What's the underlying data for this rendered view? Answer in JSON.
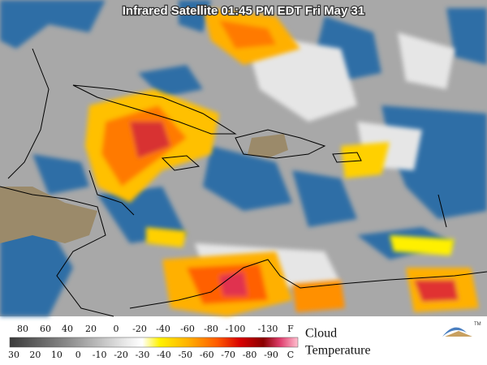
{
  "title": "Infrared Satellite 01:45 PM EDT Fri May 31",
  "legend": {
    "fahrenheit": {
      "labels": [
        80,
        60,
        40,
        20,
        0,
        -20,
        -40,
        -60,
        -80,
        -100,
        -130
      ],
      "unit": "F"
    },
    "celsius": {
      "labels": [
        30,
        20,
        10,
        0,
        -10,
        -20,
        -30,
        -40,
        -50,
        -60,
        -70,
        -80,
        -90
      ],
      "unit": "C"
    },
    "caption": [
      "Cloud",
      "Temperature"
    ],
    "logo": "TM"
  }
}
